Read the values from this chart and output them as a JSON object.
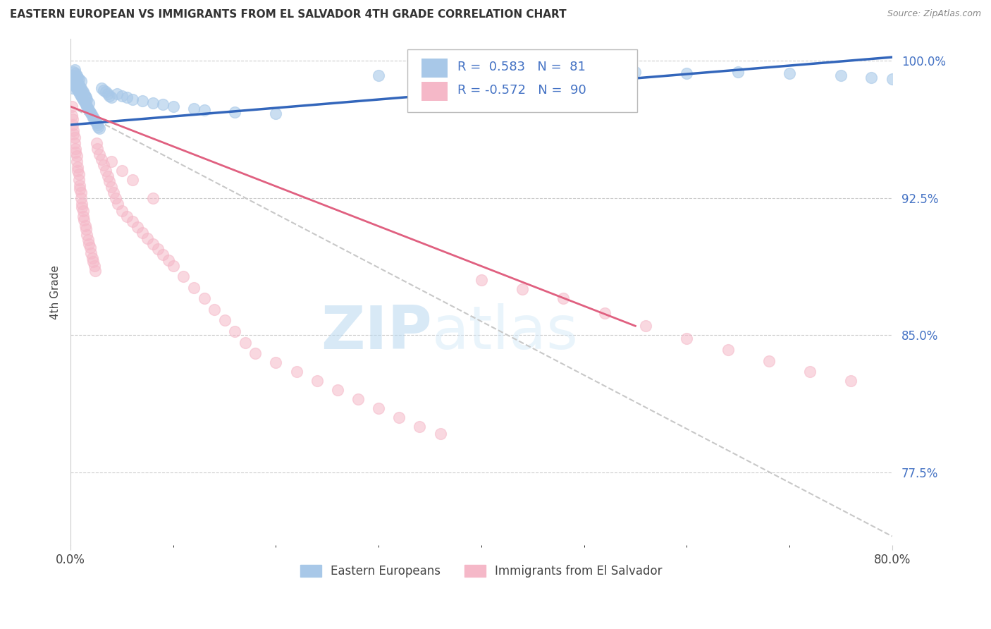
{
  "title": "EASTERN EUROPEAN VS IMMIGRANTS FROM EL SALVADOR 4TH GRADE CORRELATION CHART",
  "source": "Source: ZipAtlas.com",
  "ylabel": "4th Grade",
  "legend_blue_label": "Eastern Europeans",
  "legend_pink_label": "Immigrants from El Salvador",
  "R_blue": 0.583,
  "N_blue": 81,
  "R_pink": -0.572,
  "N_pink": 90,
  "blue_color": "#a8c8e8",
  "pink_color": "#f5b8c8",
  "blue_line_color": "#3366bb",
  "pink_line_color": "#e06080",
  "gray_line_color": "#c8c8c8",
  "watermark_zip": "ZIP",
  "watermark_atlas": "atlas",
  "xmin": 0.0,
  "xmax": 0.8,
  "ymin": 0.735,
  "ymax": 1.012,
  "ytick_vals": [
    0.775,
    0.85,
    0.925,
    1.0
  ],
  "ytick_labels": [
    "77.5%",
    "85.0%",
    "92.5%",
    "100.0%"
  ],
  "blue_trend_x": [
    0.0,
    0.8
  ],
  "blue_trend_y": [
    0.965,
    1.002
  ],
  "pink_trend_x": [
    0.0,
    0.55
  ],
  "pink_trend_y": [
    0.975,
    0.855
  ],
  "gray_trend_x": [
    0.0,
    0.8
  ],
  "gray_trend_y": [
    0.975,
    0.74
  ],
  "blue_scatter_x": [
    0.001,
    0.002,
    0.002,
    0.003,
    0.003,
    0.003,
    0.004,
    0.004,
    0.004,
    0.005,
    0.005,
    0.005,
    0.006,
    0.006,
    0.006,
    0.007,
    0.007,
    0.007,
    0.008,
    0.008,
    0.008,
    0.009,
    0.009,
    0.01,
    0.01,
    0.01,
    0.011,
    0.011,
    0.012,
    0.012,
    0.013,
    0.013,
    0.014,
    0.014,
    0.015,
    0.015,
    0.016,
    0.016,
    0.017,
    0.018,
    0.018,
    0.019,
    0.02,
    0.021,
    0.022,
    0.023,
    0.024,
    0.025,
    0.026,
    0.027,
    0.028,
    0.03,
    0.032,
    0.034,
    0.036,
    0.038,
    0.04,
    0.045,
    0.05,
    0.055,
    0.06,
    0.07,
    0.08,
    0.09,
    0.1,
    0.12,
    0.13,
    0.16,
    0.2,
    0.3,
    0.35,
    0.4,
    0.5,
    0.55,
    0.6,
    0.65,
    0.7,
    0.75,
    0.78,
    0.8,
    0.82
  ],
  "blue_scatter_y": [
    0.988,
    0.992,
    0.985,
    0.99,
    0.988,
    0.994,
    0.987,
    0.991,
    0.995,
    0.986,
    0.99,
    0.993,
    0.985,
    0.989,
    0.992,
    0.984,
    0.988,
    0.991,
    0.983,
    0.987,
    0.99,
    0.982,
    0.986,
    0.981,
    0.985,
    0.989,
    0.98,
    0.984,
    0.979,
    0.983,
    0.978,
    0.982,
    0.977,
    0.981,
    0.976,
    0.98,
    0.975,
    0.979,
    0.974,
    0.973,
    0.977,
    0.972,
    0.971,
    0.97,
    0.969,
    0.968,
    0.967,
    0.966,
    0.965,
    0.964,
    0.963,
    0.985,
    0.984,
    0.983,
    0.982,
    0.981,
    0.98,
    0.982,
    0.981,
    0.98,
    0.979,
    0.978,
    0.977,
    0.976,
    0.975,
    0.974,
    0.973,
    0.972,
    0.971,
    0.992,
    0.991,
    0.99,
    0.995,
    0.994,
    0.993,
    0.994,
    0.993,
    0.992,
    0.991,
    0.99,
    0.989
  ],
  "pink_scatter_x": [
    0.001,
    0.001,
    0.002,
    0.002,
    0.003,
    0.003,
    0.004,
    0.004,
    0.005,
    0.005,
    0.006,
    0.006,
    0.007,
    0.007,
    0.008,
    0.008,
    0.009,
    0.009,
    0.01,
    0.01,
    0.011,
    0.011,
    0.012,
    0.012,
    0.013,
    0.014,
    0.015,
    0.016,
    0.017,
    0.018,
    0.019,
    0.02,
    0.021,
    0.022,
    0.023,
    0.024,
    0.025,
    0.026,
    0.028,
    0.03,
    0.032,
    0.034,
    0.036,
    0.038,
    0.04,
    0.042,
    0.044,
    0.046,
    0.05,
    0.055,
    0.06,
    0.065,
    0.07,
    0.075,
    0.08,
    0.085,
    0.09,
    0.095,
    0.1,
    0.11,
    0.12,
    0.13,
    0.14,
    0.15,
    0.16,
    0.17,
    0.18,
    0.2,
    0.22,
    0.24,
    0.26,
    0.28,
    0.3,
    0.32,
    0.34,
    0.36,
    0.4,
    0.44,
    0.48,
    0.52,
    0.56,
    0.6,
    0.64,
    0.68,
    0.72,
    0.76,
    0.04,
    0.05,
    0.06,
    0.08
  ],
  "pink_scatter_y": [
    0.975,
    0.97,
    0.968,
    0.965,
    0.962,
    0.96,
    0.958,
    0.955,
    0.952,
    0.95,
    0.948,
    0.945,
    0.942,
    0.94,
    0.938,
    0.935,
    0.932,
    0.93,
    0.928,
    0.925,
    0.922,
    0.92,
    0.918,
    0.915,
    0.913,
    0.91,
    0.908,
    0.905,
    0.902,
    0.9,
    0.898,
    0.895,
    0.892,
    0.89,
    0.888,
    0.885,
    0.955,
    0.952,
    0.949,
    0.946,
    0.943,
    0.94,
    0.937,
    0.934,
    0.931,
    0.928,
    0.925,
    0.922,
    0.918,
    0.915,
    0.912,
    0.909,
    0.906,
    0.903,
    0.9,
    0.897,
    0.894,
    0.891,
    0.888,
    0.882,
    0.876,
    0.87,
    0.864,
    0.858,
    0.852,
    0.846,
    0.84,
    0.835,
    0.83,
    0.825,
    0.82,
    0.815,
    0.81,
    0.805,
    0.8,
    0.796,
    0.88,
    0.875,
    0.87,
    0.862,
    0.855,
    0.848,
    0.842,
    0.836,
    0.83,
    0.825,
    0.945,
    0.94,
    0.935,
    0.925
  ]
}
